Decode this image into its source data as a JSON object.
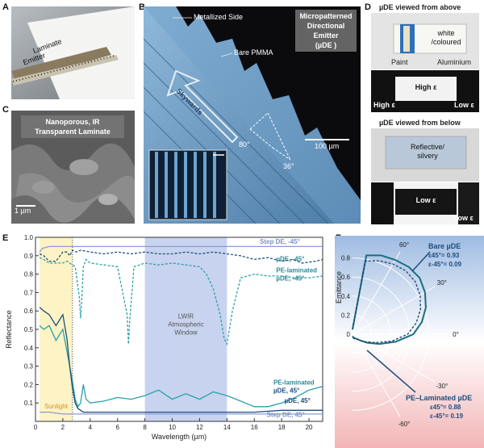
{
  "panels": {
    "A": {
      "label": "A",
      "texts": [
        "Laminate",
        "Emitter"
      ]
    },
    "B": {
      "label": "B",
      "title_lines": [
        "Micropatterned",
        "Directional",
        "Emitter",
        "(µDE )"
      ],
      "annotations": [
        "Metallized Side",
        "Bare PMMA",
        "Skywards"
      ],
      "angles": [
        "80°",
        "36°"
      ],
      "scale_bar": "100 µm"
    },
    "C": {
      "label": "C",
      "title_lines": [
        "Nanoporous, IR",
        "Transparent Laminate"
      ],
      "scale_bar": "1 µm"
    },
    "D": {
      "label": "D",
      "above": {
        "title": "µDE viewed from above",
        "callout_lines": [
          "white",
          "/coloured"
        ],
        "paint": "Paint",
        "aluminium": "Aluminium",
        "center": "High ε",
        "left": "High ε",
        "right": "Low ε"
      },
      "below": {
        "title": "µDE viewed from below",
        "callout_lines": [
          "Reflective/",
          "silvery"
        ],
        "center": "Low ε",
        "left": "High ε",
        "right": "Low ε"
      }
    },
    "E": {
      "label": "E"
    },
    "F": {
      "label": "F"
    }
  },
  "chart_data": [
    {
      "type": "line",
      "panel": "E",
      "xlabel": "Wavelength (µm)",
      "ylabel": "Reflectance",
      "xlim": [
        0,
        21
      ],
      "ylim": [
        0,
        1.0
      ],
      "xticks": [
        0,
        2,
        4,
        6,
        8,
        10,
        12,
        14,
        16,
        18,
        20
      ],
      "yticks": [
        0.1,
        0.2,
        0.3,
        0.4,
        0.5,
        0.6,
        0.7,
        0.8,
        0.9,
        1.0
      ],
      "bands": [
        {
          "label": "Sunlight",
          "x": [
            0.3,
            2.7
          ],
          "color": "#fdf3c4"
        },
        {
          "label_lines": [
            "LWIR",
            "Atmospheric",
            "Window"
          ],
          "x": [
            8,
            14
          ],
          "color": "#c8d3ef"
        }
      ],
      "series": [
        {
          "name": "Step DE, -45°",
          "color": "#8e9bd3",
          "dash": "solid",
          "x": [
            0.3,
            0.5,
            1.0,
            1.5,
            2.0,
            2.5,
            3.0,
            4,
            6,
            8,
            10,
            12,
            14,
            16,
            18,
            20,
            21
          ],
          "y": [
            0.92,
            0.94,
            0.95,
            0.95,
            0.95,
            0.95,
            0.95,
            0.95,
            0.95,
            0.95,
            0.95,
            0.95,
            0.95,
            0.95,
            0.95,
            0.95,
            0.95
          ]
        },
        {
          "name": "µDE, -45°",
          "color": "#1a4f80",
          "dash": "dashed",
          "x": [
            0.3,
            0.6,
            1.0,
            1.5,
            2.0,
            2.3,
            2.5,
            2.7,
            3.0,
            3.3,
            4,
            5,
            6,
            7,
            8,
            9,
            10,
            11,
            12,
            13,
            14,
            15,
            16,
            17,
            18,
            18.8,
            19.5,
            20.5,
            21
          ],
          "y": [
            0.91,
            0.9,
            0.87,
            0.87,
            0.92,
            0.92,
            0.9,
            0.93,
            0.92,
            0.93,
            0.92,
            0.91,
            0.92,
            0.91,
            0.92,
            0.91,
            0.91,
            0.92,
            0.91,
            0.92,
            0.91,
            0.9,
            0.88,
            0.89,
            0.87,
            0.88,
            0.86,
            0.87,
            0.88
          ]
        },
        {
          "name": "PE-laminated µDE, -45°",
          "color": "#2aa0aa",
          "dash": "dashed",
          "x": [
            0.3,
            0.6,
            1.0,
            1.5,
            2.0,
            2.3,
            2.5,
            2.7,
            2.9,
            3.2,
            3.3,
            3.4,
            3.5,
            3.7,
            4.0,
            5.0,
            6.0,
            6.7,
            6.8,
            6.9,
            7.2,
            8,
            9,
            10,
            11,
            12,
            12.5,
            13,
            13.5,
            13.8,
            14.0,
            14.4,
            15,
            16,
            17,
            18,
            19,
            20,
            21
          ],
          "y": [
            0.89,
            0.88,
            0.86,
            0.86,
            0.86,
            0.87,
            0.86,
            0.85,
            0.84,
            0.68,
            0.56,
            0.68,
            0.84,
            0.88,
            0.86,
            0.85,
            0.84,
            0.58,
            0.42,
            0.56,
            0.84,
            0.86,
            0.85,
            0.86,
            0.85,
            0.84,
            0.8,
            0.72,
            0.58,
            0.45,
            0.42,
            0.6,
            0.78,
            0.8,
            0.79,
            0.79,
            0.78,
            0.78,
            0.79
          ]
        },
        {
          "name": "PE-laminated µDE, 45°",
          "color": "#2aa0aa",
          "dash": "solid",
          "x": [
            0.3,
            0.6,
            1.0,
            1.5,
            2.0,
            2.3,
            2.5,
            2.7,
            2.9,
            3.1,
            3.3,
            3.5,
            3.7,
            4,
            5,
            6,
            7,
            8,
            9,
            10,
            11,
            12,
            13,
            14,
            15,
            16,
            17,
            18,
            19,
            20,
            21
          ],
          "y": [
            0.52,
            0.5,
            0.52,
            0.44,
            0.5,
            0.38,
            0.3,
            0.22,
            0.12,
            0.08,
            0.1,
            0.2,
            0.12,
            0.1,
            0.11,
            0.13,
            0.12,
            0.14,
            0.17,
            0.12,
            0.15,
            0.12,
            0.16,
            0.14,
            0.11,
            0.08,
            0.08,
            0.1,
            0.13,
            0.17,
            0.19
          ]
        },
        {
          "name": "µDE, 45°",
          "color": "#1a4f80",
          "dash": "solid",
          "x": [
            0.3,
            0.6,
            1.0,
            1.5,
            2.0,
            2.3,
            2.5,
            2.7,
            2.9,
            3.1,
            3.3,
            3.5,
            4,
            6,
            8,
            10,
            12,
            14,
            16,
            18,
            19,
            20,
            21
          ],
          "y": [
            0.62,
            0.6,
            0.58,
            0.52,
            0.58,
            0.45,
            0.3,
            0.18,
            0.1,
            0.07,
            0.06,
            0.05,
            0.05,
            0.05,
            0.05,
            0.05,
            0.05,
            0.05,
            0.05,
            0.06,
            0.06,
            0.06,
            0.06
          ]
        },
        {
          "name": "Step DE, 45°",
          "color": "#8e9bd3",
          "dash": "solid",
          "x": [
            0.3,
            1,
            2,
            3,
            4,
            6,
            8,
            10,
            12,
            14,
            16,
            18,
            20,
            21
          ],
          "y": [
            0.05,
            0.05,
            0.04,
            0.04,
            0.04,
            0.04,
            0.04,
            0.04,
            0.04,
            0.04,
            0.04,
            0.04,
            0.04,
            0.04
          ]
        }
      ],
      "line_labels": [
        {
          "text": "Step DE, -45°",
          "x": 16.4,
          "y": 0.965
        },
        {
          "text": "µDE, -45°",
          "x": 17.6,
          "y": 0.87
        },
        {
          "text": "PE-laminated",
          "x": 17.6,
          "y": 0.81
        },
        {
          "text": "µDE, -45°",
          "x": 17.6,
          "y": 0.765
        },
        {
          "text": "PE-laminated",
          "x": 17.4,
          "y": 0.2
        },
        {
          "text": "µDE, 45°",
          "x": 17.4,
          "y": 0.155
        },
        {
          "text": "µDE, 45°",
          "x": 18.2,
          "y": 0.1
        },
        {
          "text": "Step DE, 45°",
          "x": 16.9,
          "y": 0.025
        }
      ]
    },
    {
      "type": "polar",
      "panel": "F",
      "ylabel": "Emittance",
      "r_ticks": [
        0.2,
        0.4,
        0.6,
        0.8
      ],
      "angle_ticks": [
        "60°",
        "30°",
        "0°",
        "-30°",
        "-60°"
      ],
      "series": [
        {
          "name": "Bare µDE",
          "dash": "solid",
          "color": "#1a6e80",
          "angles_deg": [
            90,
            80,
            70,
            60,
            50,
            40,
            30,
            20,
            10,
            0,
            -10,
            -20,
            -30,
            -40,
            -50,
            -60,
            -70,
            -80,
            -90
          ],
          "r": [
            0.05,
            0.84,
            0.88,
            0.9,
            0.92,
            0.92,
            0.88,
            0.82,
            0.74,
            0.64,
            0.46,
            0.3,
            0.18,
            0.1,
            0.06,
            0.05,
            0.04,
            0.03,
            0.02
          ]
        },
        {
          "name": "PE-Laminated µDE",
          "dash": "dashed",
          "color": "#1a3e6a",
          "angles_deg": [
            90,
            80,
            70,
            60,
            50,
            40,
            30,
            20,
            10,
            0,
            -10,
            -20,
            -30,
            -40,
            -50,
            -60,
            -70,
            -80,
            -90
          ],
          "r": [
            0.05,
            0.78,
            0.82,
            0.85,
            0.87,
            0.86,
            0.82,
            0.76,
            0.68,
            0.58,
            0.42,
            0.26,
            0.16,
            0.1,
            0.07,
            0.06,
            0.05,
            0.04,
            0.03
          ]
        }
      ],
      "annotations": {
        "bare_lines": [
          "Bare µDE",
          "ε45°= 0.93",
          "ε-45°= 0.09"
        ],
        "pe_lines": [
          "PE–Laminated µDE",
          "ε45°= 0.88",
          "ε-45°= 0.19"
        ]
      }
    }
  ]
}
